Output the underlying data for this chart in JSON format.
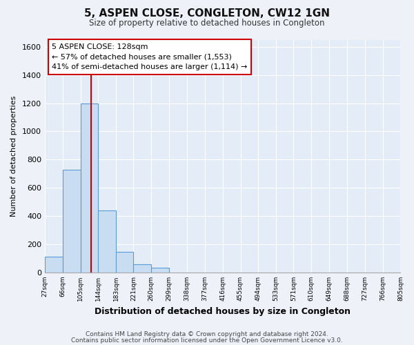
{
  "title": "5, ASPEN CLOSE, CONGLETON, CW12 1GN",
  "subtitle": "Size of property relative to detached houses in Congleton",
  "xlabel": "Distribution of detached houses by size in Congleton",
  "ylabel": "Number of detached properties",
  "footnote1": "Contains HM Land Registry data © Crown copyright and database right 2024.",
  "footnote2": "Contains public sector information licensed under the Open Government Licence v3.0.",
  "bar_edges": [
    27,
    66,
    105,
    144,
    183,
    221,
    260,
    299,
    338,
    377,
    416,
    455,
    494,
    533,
    571,
    610,
    649,
    688,
    727,
    766,
    805
  ],
  "bar_heights": [
    110,
    730,
    1200,
    440,
    145,
    60,
    35,
    0,
    0,
    0,
    0,
    0,
    0,
    0,
    0,
    0,
    0,
    0,
    0,
    0
  ],
  "bar_color": "#c9ddf2",
  "bar_edgecolor": "#5b9bd5",
  "property_line_x": 128,
  "property_line_color": "#cc0000",
  "ylim": [
    0,
    1650
  ],
  "yticks": [
    0,
    200,
    400,
    600,
    800,
    1000,
    1200,
    1400,
    1600
  ],
  "annotation_line1": "5 ASPEN CLOSE: 128sqm",
  "annotation_line2": "← 57% of detached houses are smaller (1,553)",
  "annotation_line3": "41% of semi-detached houses are larger (1,114) →",
  "bg_color": "#eef2f8",
  "plot_bg_color": "#e4ecf7"
}
